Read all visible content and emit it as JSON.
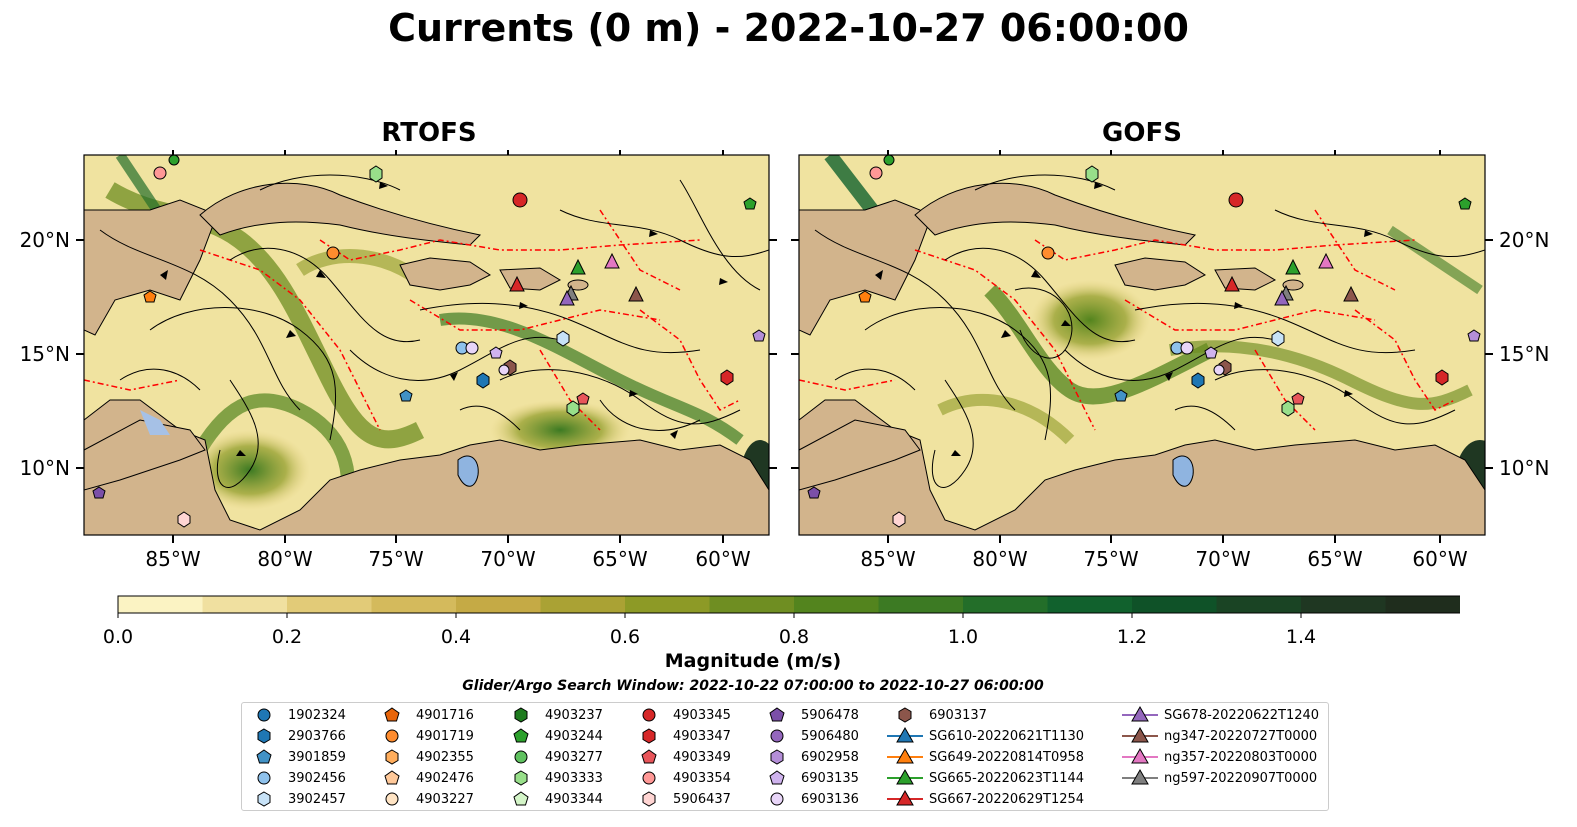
{
  "title": "Currents (0 m) - 2022-10-27 06:00:00",
  "panels": [
    {
      "title": "RTOFS",
      "xticks": [
        "85°W",
        "80°W",
        "75°W",
        "70°W",
        "65°W",
        "60°W"
      ],
      "yticks": [
        "20°N",
        "15°N",
        "10°N"
      ]
    },
    {
      "title": "GOFS",
      "xticks": [
        "85°W",
        "80°W",
        "75°W",
        "70°W",
        "65°W",
        "60°W"
      ],
      "yticks": [
        "20°N",
        "15°N",
        "10°N"
      ]
    }
  ],
  "colorbar": {
    "label": "Magnitude (m/s)",
    "ticks": [
      "0.0",
      "0.2",
      "0.4",
      "0.6",
      "0.8",
      "1.0",
      "1.2",
      "1.4"
    ],
    "colors": [
      "#fbf3c3",
      "#f0e0a0",
      "#e2cb78",
      "#d4ba5c",
      "#c5aa45",
      "#aaa234",
      "#8d9a26",
      "#6f8e22",
      "#53841e",
      "#3c7a23",
      "#236e29",
      "#11612d",
      "#0f5228",
      "#1a4424",
      "#1f3722",
      "#1f2d1d",
      "#1c2417"
    ]
  },
  "search_window": "Glider/Argo Search Window: 2022-10-22 07:00:00 to 2022-10-27 06:00:00",
  "legend": [
    {
      "label": "1902324",
      "color": "#1f77b4",
      "marker": "circle"
    },
    {
      "label": "2903766",
      "color": "#1f77b4",
      "marker": "hexagon"
    },
    {
      "label": "3901859",
      "color": "#4292c6",
      "marker": "pentagon"
    },
    {
      "label": "3902456",
      "color": "#8fc2ec",
      "marker": "circle"
    },
    {
      "label": "3902457",
      "color": "#c7e2f7",
      "marker": "hexagon"
    },
    {
      "label": "4901716",
      "color": "#e8650a",
      "marker": "pentagon"
    },
    {
      "label": "4901719",
      "color": "#ff8c2e",
      "marker": "circle"
    },
    {
      "label": "4902355",
      "color": "#ffad5c",
      "marker": "hexagon"
    },
    {
      "label": "4902476",
      "color": "#ffc99a",
      "marker": "pentagon"
    },
    {
      "label": "4903227",
      "color": "#ffe4c4",
      "marker": "circle"
    },
    {
      "label": "4903237",
      "color": "#1e7b1e",
      "marker": "hexagon"
    },
    {
      "label": "4903244",
      "color": "#2ca02c",
      "marker": "pentagon"
    },
    {
      "label": "4903277",
      "color": "#5fc15f",
      "marker": "circle"
    },
    {
      "label": "4903333",
      "color": "#98df8a",
      "marker": "hexagon"
    },
    {
      "label": "4903344",
      "color": "#d4f5c8",
      "marker": "pentagon"
    },
    {
      "label": "4903345",
      "color": "#d62728",
      "marker": "circle"
    },
    {
      "label": "4903347",
      "color": "#d62728",
      "marker": "hexagon"
    },
    {
      "label": "4903349",
      "color": "#e8555a",
      "marker": "pentagon"
    },
    {
      "label": "4903354",
      "color": "#ff9896",
      "marker": "circle"
    },
    {
      "label": "5906437",
      "color": "#ffd5d3",
      "marker": "hexagon"
    },
    {
      "label": "5906478",
      "color": "#7b4fa8",
      "marker": "pentagon"
    },
    {
      "label": "5906480",
      "color": "#9467bd",
      "marker": "circle"
    },
    {
      "label": "6902958",
      "color": "#b48ed8",
      "marker": "hexagon"
    },
    {
      "label": "6903135",
      "color": "#cfb3ee",
      "marker": "pentagon"
    },
    {
      "label": "6903136",
      "color": "#e8d5f8",
      "marker": "circle"
    },
    {
      "label": "6903137",
      "color": "#8c564b",
      "marker": "hexagon"
    },
    {
      "label": "SG610-20220621T1130",
      "color": "#1f77b4",
      "marker": "triangle"
    },
    {
      "label": "SG649-20220814T0958",
      "color": "#ff7f0e",
      "marker": "triangle"
    },
    {
      "label": "SG665-20220623T1144",
      "color": "#2ca02c",
      "marker": "triangle"
    },
    {
      "label": "SG667-20220629T1254",
      "color": "#d62728",
      "marker": "triangle"
    },
    {
      "label": "SG678-20220622T1240",
      "color": "#9467bd",
      "marker": "triangle"
    },
    {
      "label": "ng347-20220727T0000",
      "color": "#8c564b",
      "marker": "triangle"
    },
    {
      "label": "ng357-20220803T0000",
      "color": "#e377c2",
      "marker": "triangle"
    },
    {
      "label": "ng597-20220907T0000",
      "color": "#7f7f7f",
      "marker": "triangle"
    }
  ],
  "colors": {
    "land": "#d2b48c",
    "ocean": "#f0e3a0",
    "current_strong": "#2e7d32",
    "eez": "#ff0000",
    "lake": "#8fb4e0"
  }
}
